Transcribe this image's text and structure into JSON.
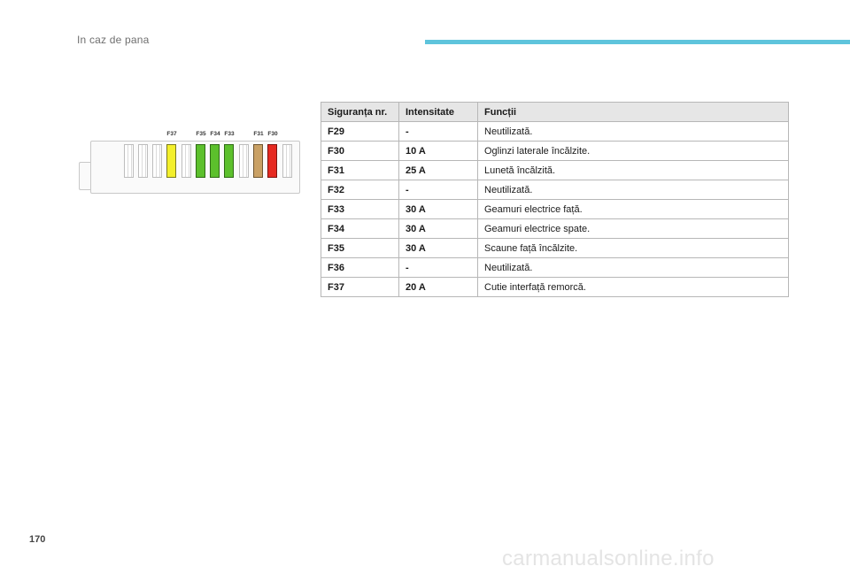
{
  "header": {
    "section_title": "In caz de pana",
    "accent_color": "#5ec4dc"
  },
  "page_number": "170",
  "watermark": "carmanualsonline.info",
  "fuse_diagram": {
    "labels": [
      "F37",
      "F35",
      "F34",
      "F33",
      "F31",
      "F30"
    ],
    "slots": [
      {
        "color": "empty"
      },
      {
        "color": "empty"
      },
      {
        "color": "empty"
      },
      {
        "color": "yellow",
        "fuse": "F37"
      },
      {
        "color": "empty"
      },
      {
        "color": "green",
        "fuse": "F35"
      },
      {
        "color": "green",
        "fuse": "F34"
      },
      {
        "color": "green",
        "fuse": "F33"
      },
      {
        "color": "empty"
      },
      {
        "color": "tan",
        "fuse": "F31"
      },
      {
        "color": "red",
        "fuse": "F30"
      },
      {
        "color": "empty"
      }
    ],
    "colors": {
      "yellow": "#f3ef2b",
      "green": "#5cc02c",
      "tan": "#c9a064",
      "red": "#e62a21"
    }
  },
  "table": {
    "headers": [
      "Siguranța nr.",
      "Intensitate",
      "Funcții"
    ],
    "rows": [
      {
        "fuse": "F29",
        "amperage": "-",
        "function": "Neutilizată."
      },
      {
        "fuse": "F30",
        "amperage": "10 A",
        "function": "Oglinzi laterale încălzite."
      },
      {
        "fuse": "F31",
        "amperage": "25 A",
        "function": "Lunetă încălzită."
      },
      {
        "fuse": "F32",
        "amperage": "-",
        "function": "Neutilizată."
      },
      {
        "fuse": "F33",
        "amperage": "30 A",
        "function": "Geamuri electrice față."
      },
      {
        "fuse": "F34",
        "amperage": "30 A",
        "function": "Geamuri electrice spate."
      },
      {
        "fuse": "F35",
        "amperage": "30 A",
        "function": "Scaune față încălzite."
      },
      {
        "fuse": "F36",
        "amperage": "-",
        "function": "Neutilizată."
      },
      {
        "fuse": "F37",
        "amperage": "20 A",
        "function": "Cutie interfață remorcă."
      }
    ]
  }
}
